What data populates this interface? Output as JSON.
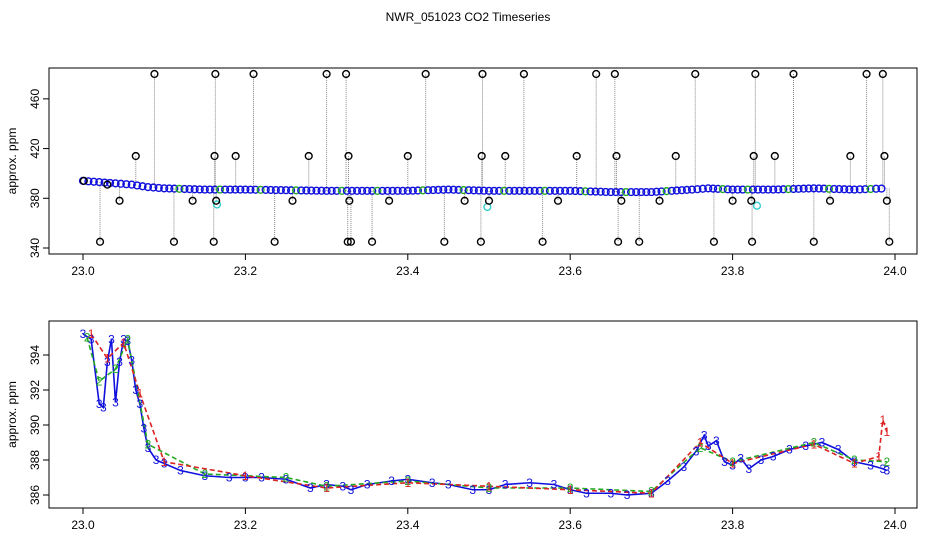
{
  "title": "NWR_051023  CO2 Timeseries",
  "chart_data": [
    {
      "type": "scatter",
      "ylabel": "approx. ppm",
      "xlim": [
        23.0,
        24.0
      ],
      "ylim": [
        340,
        480
      ],
      "x_ticks": [
        23.0,
        23.2,
        23.4,
        23.6,
        23.8,
        24.0
      ],
      "x_tick_labels": [
        "23.0",
        "23.2",
        "23.4",
        "23.6",
        "23.8",
        "24.0"
      ],
      "y_ticks": [
        340,
        380,
        420,
        460
      ],
      "y_tick_labels": [
        "340",
        "380",
        "420",
        "460"
      ],
      "grid": false,
      "colors": {
        "main": "#1010dd",
        "secondary": "#22aa22",
        "alt": "#dd2222",
        "outlier": "#000000",
        "flag": "#33cccc",
        "spike": "#888888"
      },
      "series": [
        {
          "values": [
            [
              23.0,
              394
            ],
            [
              23.02,
              393
            ],
            [
              23.04,
              392
            ],
            [
              23.06,
              391
            ],
            [
              23.08,
              389
            ],
            [
              23.1,
              388
            ],
            [
              23.15,
              387
            ],
            [
              23.2,
              387
            ],
            [
              23.3,
              386
            ],
            [
              23.4,
              386
            ],
            [
              23.45,
              387
            ],
            [
              23.5,
              386
            ],
            [
              23.55,
              386
            ],
            [
              23.6,
              386
            ],
            [
              23.65,
              385
            ],
            [
              23.7,
              385
            ],
            [
              23.75,
              387
            ],
            [
              23.77,
              388
            ],
            [
              23.8,
              387
            ],
            [
              23.85,
              387
            ],
            [
              23.9,
              388
            ],
            [
              23.95,
              387
            ],
            [
              23.99,
              388
            ]
          ]
        }
      ],
      "outliers": [
        [
          23.001,
          394
        ],
        [
          23.021,
          345
        ],
        [
          23.03,
          391
        ],
        [
          23.045,
          378
        ],
        [
          23.065,
          414
        ],
        [
          23.088,
          480
        ],
        [
          23.112,
          345
        ],
        [
          23.135,
          378
        ],
        [
          23.161,
          345
        ],
        [
          23.162,
          414
        ],
        [
          23.163,
          480
        ],
        [
          23.164,
          378
        ],
        [
          23.188,
          414
        ],
        [
          23.21,
          480
        ],
        [
          23.236,
          345
        ],
        [
          23.258,
          378
        ],
        [
          23.278,
          414
        ],
        [
          23.3,
          480
        ],
        [
          23.324,
          480
        ],
        [
          23.326,
          345
        ],
        [
          23.327,
          414
        ],
        [
          23.328,
          378
        ],
        [
          23.33,
          345
        ],
        [
          23.356,
          345
        ],
        [
          23.377,
          378
        ],
        [
          23.4,
          414
        ],
        [
          23.422,
          480
        ],
        [
          23.445,
          345
        ],
        [
          23.47,
          378
        ],
        [
          23.49,
          345
        ],
        [
          23.491,
          414
        ],
        [
          23.492,
          480
        ],
        [
          23.5,
          378
        ],
        [
          23.52,
          414
        ],
        [
          23.543,
          480
        ],
        [
          23.566,
          345
        ],
        [
          23.585,
          378
        ],
        [
          23.608,
          414
        ],
        [
          23.632,
          480
        ],
        [
          23.655,
          480
        ],
        [
          23.657,
          414
        ],
        [
          23.659,
          345
        ],
        [
          23.663,
          378
        ],
        [
          23.685,
          345
        ],
        [
          23.71,
          378
        ],
        [
          23.73,
          414
        ],
        [
          23.754,
          480
        ],
        [
          23.777,
          345
        ],
        [
          23.8,
          378
        ],
        [
          23.823,
          378
        ],
        [
          23.824,
          345
        ],
        [
          23.826,
          414
        ],
        [
          23.828,
          480
        ],
        [
          23.852,
          414
        ],
        [
          23.875,
          480
        ],
        [
          23.9,
          345
        ],
        [
          23.92,
          378
        ],
        [
          23.945,
          414
        ],
        [
          23.965,
          480
        ],
        [
          23.985,
          480
        ],
        [
          23.987,
          414
        ],
        [
          23.99,
          378
        ],
        [
          23.993,
          345
        ]
      ],
      "flags": [
        [
          23.165,
          375
        ],
        [
          23.498,
          373
        ],
        [
          23.83,
          374
        ]
      ]
    },
    {
      "type": "line",
      "ylabel": "approx. ppm",
      "xlim": [
        23.0,
        24.0
      ],
      "ylim": [
        385.6,
        395.6
      ],
      "x_ticks": [
        23.0,
        23.2,
        23.4,
        23.6,
        23.8,
        24.0
      ],
      "x_tick_labels": [
        "23.0",
        "23.2",
        "23.4",
        "23.6",
        "23.8",
        "24.0"
      ],
      "y_ticks": [
        386,
        388,
        390,
        392,
        394
      ],
      "y_tick_labels": [
        "386",
        "388",
        "390",
        "392",
        "394"
      ],
      "grid": false,
      "series": [
        {
          "label_char": "3",
          "color": "#1010dd",
          "values": [
            [
              23.0,
              395.2
            ],
            [
              23.01,
              394.9
            ],
            [
              23.02,
              391.2
            ],
            [
              23.025,
              391.0
            ],
            [
              23.03,
              393.6
            ],
            [
              23.035,
              394.9
            ],
            [
              23.04,
              391.3
            ],
            [
              23.045,
              393.6
            ],
            [
              23.05,
              394.9
            ],
            [
              23.055,
              394.8
            ],
            [
              23.06,
              393.7
            ],
            [
              23.065,
              392.0
            ],
            [
              23.07,
              391.2
            ],
            [
              23.075,
              389.8
            ],
            [
              23.08,
              388.7
            ],
            [
              23.09,
              388.0
            ],
            [
              23.1,
              387.8
            ],
            [
              23.12,
              387.4
            ],
            [
              23.15,
              387.1
            ],
            [
              23.18,
              387.0
            ],
            [
              23.2,
              387.0
            ],
            [
              23.22,
              387.0
            ],
            [
              23.25,
              386.9
            ],
            [
              23.28,
              386.4
            ],
            [
              23.3,
              386.6
            ],
            [
              23.32,
              386.5
            ],
            [
              23.33,
              386.3
            ],
            [
              23.35,
              386.6
            ],
            [
              23.38,
              386.8
            ],
            [
              23.4,
              386.9
            ],
            [
              23.43,
              386.7
            ],
            [
              23.45,
              386.6
            ],
            [
              23.48,
              386.3
            ],
            [
              23.5,
              386.3
            ],
            [
              23.52,
              386.6
            ],
            [
              23.55,
              386.7
            ],
            [
              23.58,
              386.6
            ],
            [
              23.6,
              386.3
            ],
            [
              23.62,
              386.1
            ],
            [
              23.65,
              386.1
            ],
            [
              23.67,
              386.0
            ],
            [
              23.7,
              386.1
            ],
            [
              23.72,
              386.8
            ],
            [
              23.74,
              387.6
            ],
            [
              23.755,
              388.5
            ],
            [
              23.765,
              389.4
            ],
            [
              23.77,
              388.8
            ],
            [
              23.78,
              389.1
            ],
            [
              23.79,
              387.9
            ],
            [
              23.8,
              387.7
            ],
            [
              23.81,
              388.1
            ],
            [
              23.82,
              387.5
            ],
            [
              23.835,
              388.0
            ],
            [
              23.85,
              388.2
            ],
            [
              23.87,
              388.6
            ],
            [
              23.89,
              388.8
            ],
            [
              23.91,
              389.0
            ],
            [
              23.93,
              388.6
            ],
            [
              23.95,
              387.9
            ],
            [
              23.97,
              387.7
            ],
            [
              23.985,
              387.5
            ],
            [
              23.99,
              387.4
            ]
          ]
        },
        {
          "label_char": "2",
          "color": "#22aa22",
          "values": [
            [
              23.005,
              395.0
            ],
            [
              23.02,
              392.5
            ],
            [
              23.04,
              393.2
            ],
            [
              23.055,
              394.9
            ],
            [
              23.08,
              388.9
            ],
            [
              23.15,
              387.2
            ],
            [
              23.25,
              387.0
            ],
            [
              23.3,
              386.5
            ],
            [
              23.4,
              386.8
            ],
            [
              23.5,
              386.4
            ],
            [
              23.6,
              386.4
            ],
            [
              23.7,
              386.2
            ],
            [
              23.76,
              388.7
            ],
            [
              23.8,
              387.9
            ],
            [
              23.9,
              389.0
            ],
            [
              23.95,
              388.0
            ],
            [
              23.99,
              387.9
            ]
          ]
        },
        {
          "label_char": "1",
          "color": "#dd2222",
          "values": [
            [
              23.01,
              395.2
            ],
            [
              23.03,
              393.8
            ],
            [
              23.05,
              394.7
            ],
            [
              23.07,
              391.8
            ],
            [
              23.1,
              387.9
            ],
            [
              23.2,
              387.1
            ],
            [
              23.3,
              386.4
            ],
            [
              23.4,
              386.7
            ],
            [
              23.5,
              386.5
            ],
            [
              23.6,
              386.3
            ],
            [
              23.7,
              386.1
            ],
            [
              23.76,
              389.0
            ],
            [
              23.8,
              387.8
            ],
            [
              23.9,
              388.9
            ],
            [
              23.95,
              387.8
            ],
            [
              23.98,
              388.2
            ],
            [
              23.985,
              390.3
            ],
            [
              23.99,
              389.6
            ]
          ]
        }
      ]
    }
  ]
}
